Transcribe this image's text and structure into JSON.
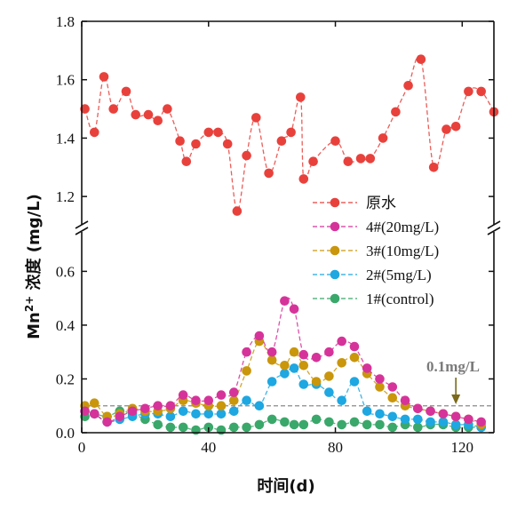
{
  "chart_data": {
    "type": "scatter",
    "xlabel": "时间(d)",
    "ylabel": "Mn2+ 浓度 (mg/L)",
    "ylabel_parts": {
      "pre": "Mn",
      "sup": "2+",
      "post": " 浓度 (mg/L)"
    },
    "xlim": [
      0,
      130
    ],
    "x_ticks": [
      "0",
      "40",
      "80",
      "120"
    ],
    "upper_ylim": [
      1.1,
      1.8
    ],
    "upper_ticks": [
      "1.2",
      "1.4",
      "1.6",
      "1.8"
    ],
    "lower_ylim": [
      0,
      0.75
    ],
    "lower_ticks": [
      "0.0",
      "0.2",
      "0.4",
      "0.6"
    ],
    "threshold": {
      "value": 0.1,
      "label": "0.1mg/L",
      "color": "#7a7a7a"
    },
    "legend_position": "upper-right of lower panel",
    "series": [
      {
        "name": "原水",
        "color": "#e8413c",
        "panel": "upper",
        "x": [
          1,
          4,
          7,
          10,
          14,
          17,
          21,
          24,
          27,
          31,
          33,
          36,
          40,
          43,
          46,
          49,
          52,
          55,
          59,
          63,
          66,
          69,
          70,
          73,
          80,
          84,
          88,
          91,
          95,
          99,
          103,
          107,
          111,
          115,
          118,
          122,
          126,
          130
        ],
        "y": [
          1.5,
          1.42,
          1.61,
          1.5,
          1.56,
          1.48,
          1.48,
          1.46,
          1.5,
          1.39,
          1.32,
          1.38,
          1.42,
          1.42,
          1.38,
          1.15,
          1.34,
          1.47,
          1.28,
          1.39,
          1.42,
          1.54,
          1.26,
          1.32,
          1.39,
          1.32,
          1.33,
          1.33,
          1.4,
          1.49,
          1.58,
          1.67,
          1.3,
          1.43,
          1.44,
          1.56,
          1.56,
          1.49
        ]
      },
      {
        "name": "4#(20mg/L)",
        "color": "#d6339a",
        "panel": "lower",
        "x": [
          1,
          4,
          8,
          12,
          16,
          20,
          24,
          28,
          32,
          36,
          40,
          44,
          48,
          52,
          56,
          60,
          64,
          67,
          70,
          74,
          78,
          82,
          86,
          90,
          94,
          98,
          102,
          106,
          110,
          114,
          118,
          122,
          126
        ],
        "y": [
          0.08,
          0.07,
          0.04,
          0.06,
          0.08,
          0.09,
          0.1,
          0.1,
          0.14,
          0.12,
          0.12,
          0.14,
          0.15,
          0.3,
          0.36,
          0.3,
          0.49,
          0.46,
          0.29,
          0.28,
          0.3,
          0.34,
          0.32,
          0.24,
          0.2,
          0.17,
          0.12,
          0.09,
          0.08,
          0.07,
          0.06,
          0.05,
          0.04
        ]
      },
      {
        "name": "3#(10mg/L)",
        "color": "#c9960c",
        "panel": "lower",
        "x": [
          1,
          4,
          8,
          12,
          16,
          20,
          24,
          28,
          32,
          36,
          40,
          44,
          48,
          52,
          56,
          60,
          64,
          67,
          70,
          74,
          78,
          82,
          86,
          90,
          94,
          98,
          102,
          106,
          110,
          114,
          118,
          122,
          126
        ],
        "y": [
          0.1,
          0.11,
          0.06,
          0.07,
          0.09,
          0.08,
          0.08,
          0.09,
          0.12,
          0.11,
          0.1,
          0.1,
          0.12,
          0.23,
          0.34,
          0.27,
          0.25,
          0.3,
          0.25,
          0.19,
          0.21,
          0.26,
          0.28,
          0.22,
          0.17,
          0.13,
          0.1,
          0.09,
          0.08,
          0.07,
          0.06,
          0.05,
          0.03
        ]
      },
      {
        "name": "2#(5mg/L)",
        "color": "#1ea7e1",
        "panel": "lower",
        "x": [
          1,
          4,
          8,
          12,
          16,
          20,
          24,
          28,
          32,
          36,
          40,
          44,
          48,
          52,
          56,
          60,
          64,
          67,
          70,
          74,
          78,
          82,
          86,
          90,
          94,
          98,
          102,
          106,
          110,
          114,
          118,
          122,
          126
        ],
        "y": [
          0.08,
          0.07,
          0.04,
          0.05,
          0.06,
          0.07,
          0.07,
          0.06,
          0.08,
          0.07,
          0.07,
          0.07,
          0.08,
          0.12,
          0.1,
          0.19,
          0.22,
          0.24,
          0.18,
          0.18,
          0.15,
          0.12,
          0.19,
          0.08,
          0.07,
          0.06,
          0.05,
          0.05,
          0.04,
          0.04,
          0.03,
          0.03,
          0.02
        ]
      },
      {
        "name": "1#(control)",
        "color": "#3aa86a",
        "panel": "lower",
        "x": [
          1,
          4,
          8,
          12,
          16,
          20,
          24,
          28,
          32,
          36,
          40,
          44,
          48,
          52,
          56,
          60,
          64,
          67,
          70,
          74,
          78,
          82,
          86,
          90,
          94,
          98,
          102,
          106,
          110,
          114,
          118,
          122,
          126
        ],
        "y": [
          0.06,
          0.07,
          0.06,
          0.08,
          0.07,
          0.05,
          0.03,
          0.02,
          0.02,
          0.01,
          0.02,
          0.01,
          0.02,
          0.02,
          0.03,
          0.05,
          0.04,
          0.03,
          0.03,
          0.05,
          0.04,
          0.03,
          0.04,
          0.03,
          0.03,
          0.02,
          0.03,
          0.02,
          0.03,
          0.03,
          0.02,
          0.02,
          0.02
        ]
      }
    ]
  }
}
